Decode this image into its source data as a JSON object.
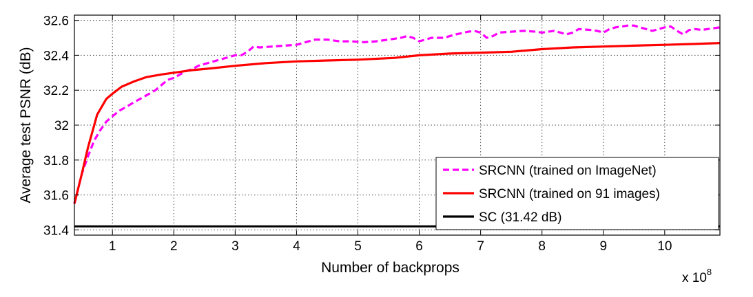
{
  "chart_data": {
    "type": "line",
    "title": "",
    "xlabel": "Number of backprops",
    "ylabel": "Average test PSNR (dB)",
    "x_multiplier_label": "x 10",
    "x_multiplier_exponent": "8",
    "xlim": [
      0.38,
      10.9
    ],
    "ylim": [
      31.37,
      32.63
    ],
    "xticks": [
      1,
      2,
      3,
      4,
      5,
      6,
      7,
      8,
      9,
      10
    ],
    "yticks": [
      31.4,
      31.6,
      31.8,
      32.0,
      32.2,
      32.4,
      32.6
    ],
    "ytick_labels": [
      "31.4",
      "31.6",
      "31.8",
      "32",
      "32.2",
      "32.4",
      "32.6"
    ],
    "grid": true,
    "legend_position": "lower-right",
    "series": [
      {
        "name": "SRCNN (trained on ImageNet)",
        "color": "#ff00ff",
        "style": "dashed",
        "x": [
          0.38,
          0.5,
          0.6,
          0.7,
          0.8,
          0.9,
          1.0,
          1.1,
          1.2,
          1.3,
          1.4,
          1.5,
          1.6,
          1.7,
          1.8,
          1.9,
          2.0,
          2.1,
          2.2,
          2.3,
          2.4,
          2.5,
          2.6,
          2.7,
          2.8,
          2.9,
          3.0,
          3.1,
          3.2,
          3.3,
          3.4,
          3.6,
          3.8,
          4.0,
          4.1,
          4.2,
          4.3,
          4.5,
          4.7,
          4.9,
          5.1,
          5.3,
          5.5,
          5.7,
          5.8,
          5.9,
          6.0,
          6.1,
          6.2,
          6.4,
          6.6,
          6.8,
          6.9,
          7.0,
          7.1,
          7.2,
          7.3,
          7.5,
          7.7,
          7.9,
          8.0,
          8.1,
          8.2,
          8.3,
          8.4,
          8.5,
          8.6,
          8.8,
          8.9,
          9.0,
          9.1,
          9.2,
          9.3,
          9.4,
          9.5,
          9.6,
          9.7,
          9.8,
          9.9,
          10.0,
          10.1,
          10.2,
          10.3,
          10.4,
          10.5,
          10.6,
          10.7,
          10.8,
          10.9
        ],
        "y": [
          31.55,
          31.72,
          31.82,
          31.91,
          31.97,
          32.02,
          32.05,
          32.08,
          32.1,
          32.12,
          32.14,
          32.16,
          32.18,
          32.2,
          32.23,
          32.26,
          32.27,
          32.29,
          32.31,
          32.32,
          32.34,
          32.35,
          32.36,
          32.37,
          32.38,
          32.39,
          32.4,
          32.4,
          32.42,
          32.45,
          32.445,
          32.45,
          32.455,
          32.46,
          32.47,
          32.48,
          32.49,
          32.49,
          32.48,
          32.48,
          32.475,
          32.48,
          32.49,
          32.5,
          32.51,
          32.5,
          32.48,
          32.49,
          32.5,
          32.5,
          32.52,
          32.535,
          32.54,
          32.53,
          32.5,
          32.51,
          32.53,
          32.535,
          32.54,
          32.535,
          32.53,
          32.535,
          32.54,
          32.53,
          32.52,
          32.53,
          32.55,
          32.545,
          32.54,
          32.53,
          32.55,
          32.56,
          32.565,
          32.57,
          32.57,
          32.56,
          32.55,
          32.54,
          32.55,
          32.56,
          32.565,
          32.54,
          32.52,
          32.545,
          32.55,
          32.545,
          32.55,
          32.555,
          32.56
        ]
      },
      {
        "name": "SRCNN (trained on 91 images)",
        "color": "#ff0000",
        "style": "solid",
        "x": [
          0.38,
          0.5,
          0.6,
          0.75,
          0.9,
          1.0,
          1.15,
          1.35,
          1.55,
          1.8,
          2.0,
          2.3,
          2.6,
          3.0,
          3.5,
          4.0,
          4.5,
          5.0,
          5.6,
          6.0,
          6.5,
          7.0,
          7.5,
          8.0,
          8.5,
          9.0,
          9.5,
          10.0,
          10.5,
          10.9
        ],
        "y": [
          31.55,
          31.72,
          31.87,
          32.06,
          32.15,
          32.18,
          32.22,
          32.25,
          32.275,
          32.29,
          32.3,
          32.315,
          32.325,
          32.34,
          32.355,
          32.365,
          32.37,
          32.375,
          32.385,
          32.4,
          32.41,
          32.415,
          32.42,
          32.435,
          32.445,
          32.45,
          32.455,
          32.46,
          32.465,
          32.47
        ]
      },
      {
        "name": "SC (31.42 dB)",
        "color": "#000000",
        "style": "solid",
        "x": [
          0.38,
          10.9
        ],
        "y": [
          31.42,
          31.42
        ]
      }
    ]
  }
}
